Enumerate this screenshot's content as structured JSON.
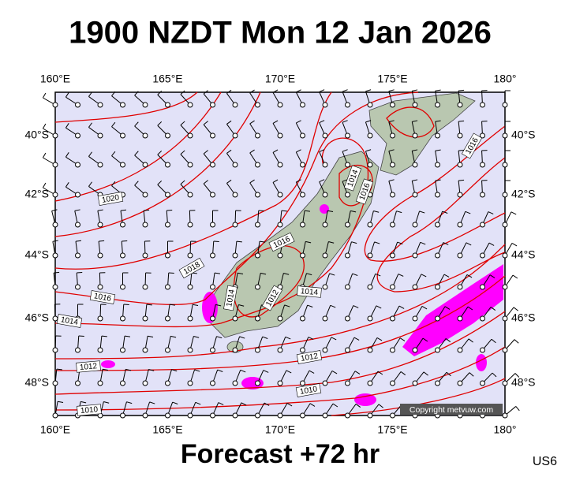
{
  "title": "1900 NZDT Mon 12 Jan 2026",
  "map": {
    "lon_labels": [
      "160°E",
      "165°E",
      "170°E",
      "175°E",
      "180°"
    ],
    "lat_labels": [
      "40°S",
      "42°S",
      "44°S",
      "46°S",
      "48°S"
    ],
    "isobar_labels": [
      "1020",
      "1018",
      "1016",
      "1014",
      "1012",
      "1010",
      "1016",
      "1014",
      "1012",
      "1014",
      "1014",
      "1016",
      "1012",
      "1010",
      "1016"
    ]
  },
  "copyright": "Copyright metvuw.com",
  "footer": "Forecast +72 hr",
  "code": "US6"
}
